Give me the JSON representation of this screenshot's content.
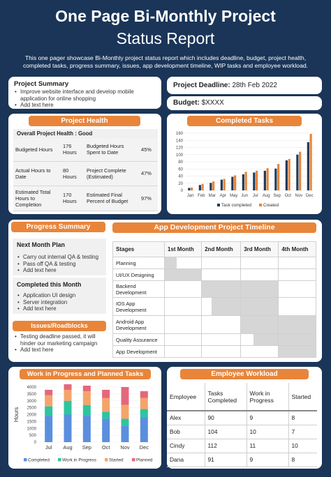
{
  "header": {
    "title_line1": "One Page Bi-Monthly Project",
    "title_line2": "Status Report",
    "subtitle": "This one pager showcase Bi-Monthly project status report which includes deadline, budget, project health, completed tasks, progress summary, issues, app development timeline, WIP tasks and employee workload."
  },
  "project_summary": {
    "title": "Project Summary",
    "items": [
      "Improve website interface and develop mobile application for online shopping",
      "Add text here"
    ]
  },
  "deadline": {
    "label": "Project Deadline:",
    "value": "28th Feb 2022"
  },
  "budget": {
    "label": "Budget:",
    "value": "$XXXX"
  },
  "project_health": {
    "title": "Project Health",
    "overall": "Overall Project Health : Good",
    "rows": [
      [
        "Budgeted Hours",
        "176 Hours",
        "Budgeted Hours Spent to Date",
        "45%"
      ],
      [
        "Actual Hours to Date",
        "80 Hours",
        "Project Complete (Estimated)",
        "47%"
      ],
      [
        "Estimated Total Hours to Completion",
        "170 Hours",
        "Estimated Final Percent of Budget",
        "97%"
      ]
    ]
  },
  "completed_tasks": {
    "title": "Completed Tasks",
    "chart_data": {
      "type": "bar",
      "categories": [
        "Jan",
        "Feb",
        "Mar",
        "Apr",
        "May",
        "Jun",
        "Jul",
        "Aug",
        "Sep",
        "Oct",
        "Nov",
        "Dec"
      ],
      "series": [
        {
          "name": "Task completed",
          "values": [
            7,
            15,
            21,
            30,
            38,
            45,
            50,
            55,
            61,
            84,
            100,
            135
          ],
          "color": "#1f3b5a"
        },
        {
          "name": "Created",
          "values": [
            8,
            18,
            25,
            32,
            42,
            52,
            55,
            62,
            74,
            88,
            108,
            158
          ],
          "color": "#e8853a"
        }
      ],
      "ylim": [
        0,
        160
      ],
      "yticks": [
        0,
        20,
        40,
        60,
        80,
        100,
        120,
        140,
        160
      ],
      "legend": "bottom"
    }
  },
  "progress_summary": {
    "title": "Progress Summary",
    "next_month_title": "Next Month Plan",
    "next_month_items": [
      "Carry out internal QA & testing",
      "Pass off QA & testing",
      "Add text here"
    ],
    "this_month_title": "Completed this Month",
    "this_month_items": [
      "Application UI design",
      "Server integration",
      "Add text here"
    ],
    "issues_title": "Issues/Roadblocks",
    "issues_items": [
      "Testing deadline passed, it will hinder our marketing campaign",
      "Add text here"
    ]
  },
  "timeline": {
    "title": "App Development Project Timeline",
    "headers": [
      "Stages",
      "1st Month",
      "2nd Month",
      "3rd Month",
      "4th Month"
    ],
    "stages": [
      "Planning",
      "UI/UX Designing",
      "Backend Development",
      "IOS App Development",
      "Android App Development",
      "Quality Assurance",
      "App Development"
    ]
  },
  "wip": {
    "title": "Work in Progress and Planned Tasks",
    "chart_data": {
      "type": "bar",
      "stacked": true,
      "categories": [
        "Jul",
        "Aug",
        "Sep",
        "Oct",
        "Nov",
        "Dec"
      ],
      "series": [
        {
          "name": "Completed",
          "values": [
            1900,
            2000,
            1900,
            1700,
            1200,
            1800
          ],
          "color": "#5b8fde"
        },
        {
          "name": "Work in Progress",
          "values": [
            700,
            1000,
            800,
            500,
            500,
            600
          ],
          "color": "#2ec4a0"
        },
        {
          "name": "Started",
          "values": [
            800,
            800,
            1000,
            1000,
            1000,
            800
          ],
          "color": "#f4a46a"
        },
        {
          "name": "Planned",
          "values": [
            400,
            400,
            400,
            600,
            1300,
            500
          ],
          "color": "#e5677c"
        }
      ],
      "ylabel": "Hours",
      "ylim": [
        0,
        4000
      ],
      "yticks": [
        0,
        500,
        1000,
        1500,
        2000,
        2500,
        3000,
        3500,
        4000
      ],
      "legend": "bottom"
    }
  },
  "workload": {
    "title": "Employee Workload",
    "headers": [
      "Employee",
      "Tasks Completed",
      "Work in Progress",
      "Started"
    ],
    "rows": [
      [
        "Alex",
        "90",
        "9",
        "8"
      ],
      [
        "Bob",
        "104",
        "10",
        "7"
      ],
      [
        "Cindy",
        "112",
        "11",
        "10"
      ],
      [
        "Dana",
        "91",
        "9",
        "8"
      ]
    ]
  }
}
